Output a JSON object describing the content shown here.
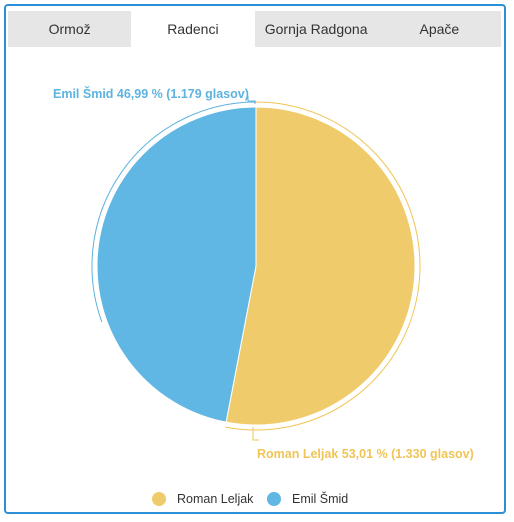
{
  "tabs": [
    {
      "label": "Ormož",
      "active": false
    },
    {
      "label": "Radenci",
      "active": true
    },
    {
      "label": "Gornja Radgona",
      "active": false
    },
    {
      "label": "Apače",
      "active": false
    }
  ],
  "colors": {
    "frame": "#2b8fd6",
    "tab_bar": "#e6e6e6",
    "roman": "#f0cb6b",
    "emil": "#61b7e4",
    "roman_label": "#f0c555",
    "emil_label": "#5db3e0"
  },
  "chart_data": {
    "type": "pie",
    "title": "",
    "slices": [
      {
        "name": "Roman Leljak",
        "percent": 53.01,
        "votes": 1330,
        "label": "Roman Leljak 53,01 % (1.330 glasov)",
        "color": "#f0cb6b"
      },
      {
        "name": "Emil Šmid",
        "percent": 46.99,
        "votes": 1179,
        "label": "Emil Šmid 46,99 % (1.179 glasov)",
        "color": "#61b7e4"
      }
    ],
    "legend": {
      "placement": "bottom",
      "entries": [
        "Roman Leljak",
        "Emil Šmid"
      ]
    }
  }
}
